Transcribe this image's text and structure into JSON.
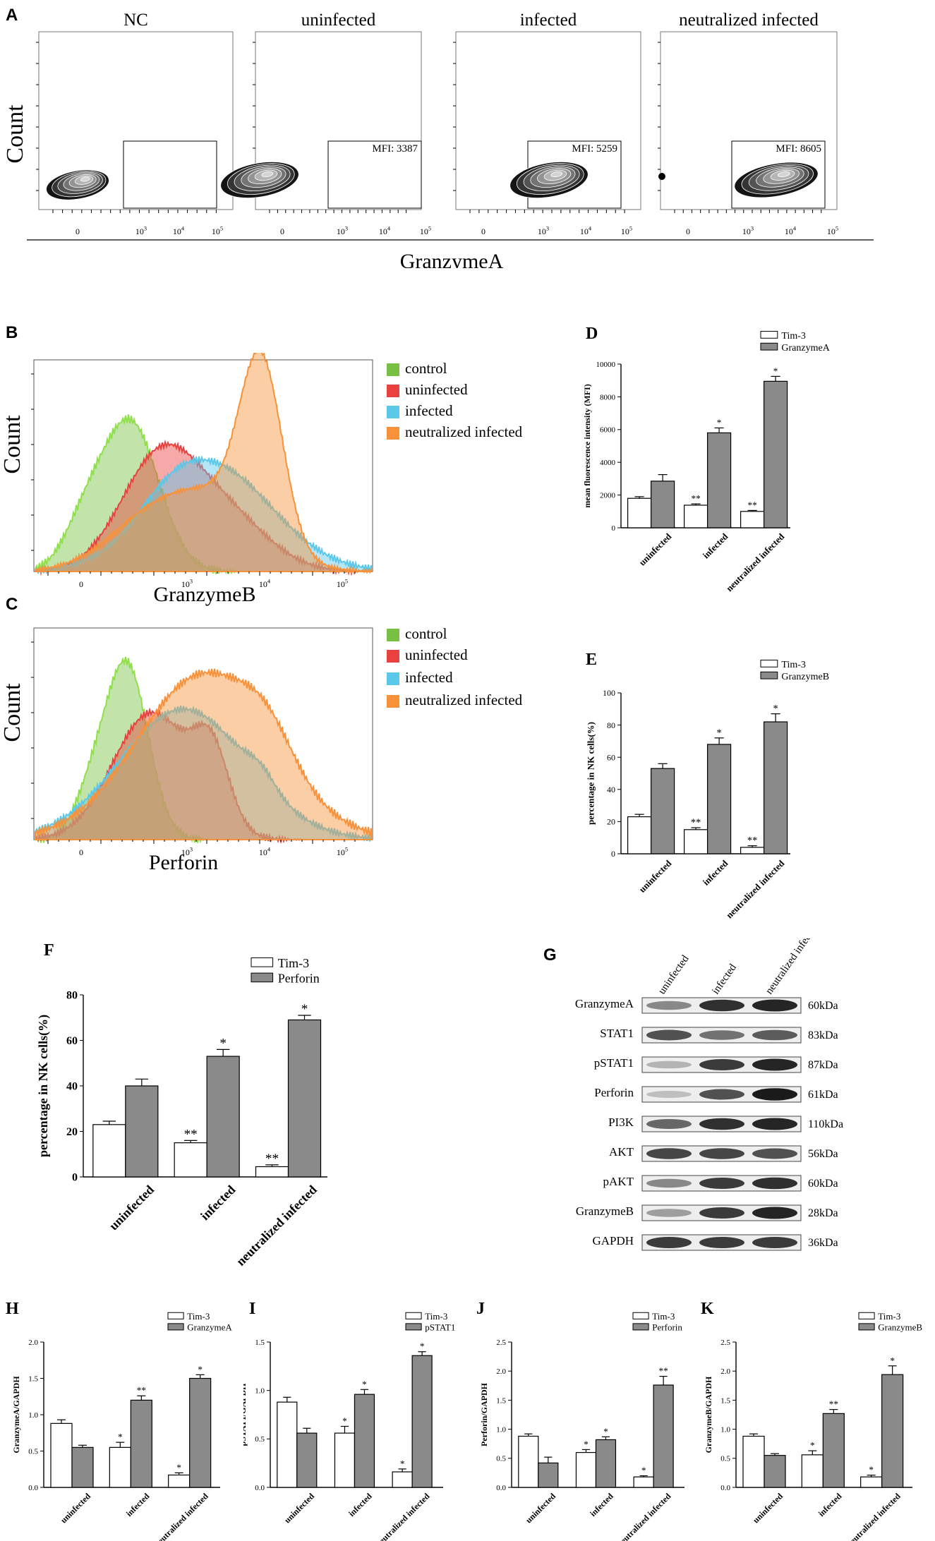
{
  "panels": {
    "A": {
      "label": "A",
      "ylabel": "Count",
      "xlabel": "GranzymeA",
      "plots": [
        {
          "title": "NC",
          "mfi": ""
        },
        {
          "title": "uninfected",
          "mfi": "MFI: 3387"
        },
        {
          "title": "infected",
          "mfi": "MFI: 5259"
        },
        {
          "title": "neutralized infected",
          "mfi": "MFI: 8605"
        }
      ],
      "ticks": [
        "0",
        "10",
        "10",
        "10"
      ],
      "tick_exps": [
        "",
        "3",
        "4",
        "5"
      ]
    },
    "B": {
      "label": "B",
      "ylabel": "Count",
      "xlabel": "GranzymeB",
      "legend": [
        "control",
        "uninfected",
        "infected",
        "neutralized infected"
      ]
    },
    "C": {
      "label": "C",
      "ylabel": "Count",
      "xlabel": "Perforin",
      "legend": [
        "control",
        "uninfected",
        "infected",
        "neutralized infected"
      ]
    },
    "hist_ticks": [
      "0",
      "10",
      "10",
      "10"
    ],
    "hist_tick_exps": [
      "",
      "3",
      "4",
      "5"
    ],
    "G": {
      "label": "G",
      "lanes": [
        "uninfected",
        "infected",
        "neutralized infected"
      ],
      "rows": [
        {
          "protein": "GranzymeA",
          "kda": "60kDa",
          "levels": [
            0.45,
            0.85,
            0.9
          ]
        },
        {
          "protein": "STAT1",
          "kda": "83kDa",
          "levels": [
            0.7,
            0.55,
            0.65
          ]
        },
        {
          "protein": "pSTAT1",
          "kda": "87kDa",
          "levels": [
            0.25,
            0.8,
            0.9
          ]
        },
        {
          "protein": "Perforin",
          "kda": "61kDa",
          "levels": [
            0.2,
            0.7,
            0.95
          ]
        },
        {
          "protein": "PI3K",
          "kda": "110kDa",
          "levels": [
            0.6,
            0.85,
            0.9
          ]
        },
        {
          "protein": "AKT",
          "kda": "56kDa",
          "levels": [
            0.75,
            0.75,
            0.7
          ]
        },
        {
          "protein": "pAKT",
          "kda": "60kDa",
          "levels": [
            0.45,
            0.8,
            0.85
          ]
        },
        {
          "protein": "GranzymeB",
          "kda": "28kDa",
          "levels": [
            0.35,
            0.8,
            0.9
          ]
        },
        {
          "protein": "GAPDH",
          "kda": "36kDa",
          "levels": [
            0.8,
            0.8,
            0.8
          ]
        }
      ]
    },
    "colors": {
      "control": "#77c043",
      "uninfected": "#e8413f",
      "infected": "#5bc8ea",
      "neutralized": "#f7923a",
      "bar_open": "#ffffff",
      "bar_gray": "#8a8a8a"
    }
  },
  "chart_data": [
    {
      "id": "D",
      "type": "bar",
      "label": "D",
      "categories": [
        "uninfected",
        "infected",
        "neutralized infected"
      ],
      "series": [
        {
          "name": "Tim-3",
          "values": [
            1800,
            1380,
            1000
          ],
          "errors": [
            100,
            80,
            60
          ],
          "sig": [
            "",
            "**",
            "**"
          ]
        },
        {
          "name": "GranzymeA",
          "values": [
            2850,
            5800,
            8950
          ],
          "errors": [
            400,
            300,
            300
          ],
          "sig": [
            "",
            "*",
            "*"
          ]
        }
      ],
      "ylabel": "mean fluorescence intensity (MFI)",
      "ylim": [
        0,
        10000
      ],
      "yticks": [
        0,
        2000,
        4000,
        6000,
        8000,
        10000
      ]
    },
    {
      "id": "E",
      "type": "bar",
      "label": "E",
      "categories": [
        "uninfected",
        "infected",
        "neutralized infected"
      ],
      "series": [
        {
          "name": "Tim-3",
          "values": [
            23,
            15,
            4
          ],
          "errors": [
            1.5,
            1.2,
            1
          ],
          "sig": [
            "",
            "**",
            "**"
          ]
        },
        {
          "name": "GranzymeB",
          "values": [
            53,
            68,
            82
          ],
          "errors": [
            3,
            4,
            5
          ],
          "sig": [
            "",
            "*",
            "*"
          ]
        }
      ],
      "ylabel": "percentage in NK cells(%)",
      "ylim": [
        0,
        100
      ],
      "yticks": [
        0,
        20,
        40,
        60,
        80,
        100
      ]
    },
    {
      "id": "F",
      "type": "bar",
      "label": "F",
      "categories": [
        "uninfected",
        "infected",
        "neutralized infected"
      ],
      "series": [
        {
          "name": "Tim-3",
          "values": [
            23,
            15,
            4.5
          ],
          "errors": [
            1.5,
            1,
            0.8
          ],
          "sig": [
            "",
            "**",
            "**"
          ]
        },
        {
          "name": "Perforin",
          "values": [
            40,
            53,
            69
          ],
          "errors": [
            3,
            3,
            2
          ],
          "sig": [
            "",
            "*",
            "*"
          ]
        }
      ],
      "ylabel": "percentage in NK cells(%)",
      "ylim": [
        0,
        80
      ],
      "yticks": [
        0,
        20,
        40,
        60,
        80
      ]
    },
    {
      "id": "H",
      "type": "bar",
      "label": "H",
      "categories": [
        "uninfected",
        "infected",
        "neutralized infected"
      ],
      "series": [
        {
          "name": "Tim-3",
          "values": [
            0.88,
            0.55,
            0.17
          ],
          "errors": [
            0.05,
            0.07,
            0.03
          ],
          "sig": [
            "",
            "*",
            "*"
          ]
        },
        {
          "name": "GranzymeA",
          "values": [
            0.55,
            1.2,
            1.5
          ],
          "errors": [
            0.03,
            0.06,
            0.05
          ],
          "sig": [
            "",
            "**",
            "*"
          ]
        }
      ],
      "ylabel": "GranzymeA/GAPDH",
      "ylim": [
        0,
        2.0
      ],
      "yticks": [
        0.0,
        0.5,
        1.0,
        1.5,
        2.0
      ]
    },
    {
      "id": "I",
      "type": "bar",
      "label": "I",
      "categories": [
        "uninfected",
        "infected",
        "neutralized infected"
      ],
      "series": [
        {
          "name": "Tim-3",
          "values": [
            0.88,
            0.56,
            0.16
          ],
          "errors": [
            0.05,
            0.07,
            0.03
          ],
          "sig": [
            "",
            "*",
            "*"
          ]
        },
        {
          "name": "pSTAT1",
          "values": [
            0.56,
            0.96,
            1.36
          ],
          "errors": [
            0.05,
            0.05,
            0.04
          ],
          "sig": [
            "",
            "*",
            "*"
          ]
        }
      ],
      "ylabel": "pSTAT1/GAPDH",
      "ylim": [
        0,
        1.5
      ],
      "yticks": [
        0.0,
        0.5,
        1.0,
        1.5
      ]
    },
    {
      "id": "J",
      "type": "bar",
      "label": "J",
      "categories": [
        "uninfected",
        "infected",
        "neutralized infected"
      ],
      "series": [
        {
          "name": "Tim-3",
          "values": [
            0.88,
            0.6,
            0.18
          ],
          "errors": [
            0.04,
            0.05,
            0.02
          ],
          "sig": [
            "",
            "*",
            "*"
          ]
        },
        {
          "name": "Perforin",
          "values": [
            0.42,
            0.82,
            1.76
          ],
          "errors": [
            0.1,
            0.05,
            0.15
          ],
          "sig": [
            "",
            "*",
            "**"
          ]
        }
      ],
      "ylabel": "Perforin/GAPDH",
      "ylim": [
        0,
        2.5
      ],
      "yticks": [
        0.0,
        0.5,
        1.0,
        1.5,
        2.0,
        2.5
      ]
    },
    {
      "id": "K",
      "type": "bar",
      "label": "K",
      "categories": [
        "uninfected",
        "infected",
        "neutralized infected"
      ],
      "series": [
        {
          "name": "Tim-3",
          "values": [
            0.88,
            0.56,
            0.18
          ],
          "errors": [
            0.04,
            0.07,
            0.03
          ],
          "sig": [
            "",
            "*",
            "*"
          ]
        },
        {
          "name": "GranzymeB",
          "values": [
            0.55,
            1.27,
            1.94
          ],
          "errors": [
            0.03,
            0.07,
            0.15
          ],
          "sig": [
            "",
            "**",
            "*"
          ]
        }
      ],
      "ylabel": "GranzymeB/GAPDH",
      "ylim": [
        0,
        2.5
      ],
      "yticks": [
        0.0,
        0.5,
        1.0,
        1.5,
        2.0,
        2.5
      ]
    }
  ]
}
